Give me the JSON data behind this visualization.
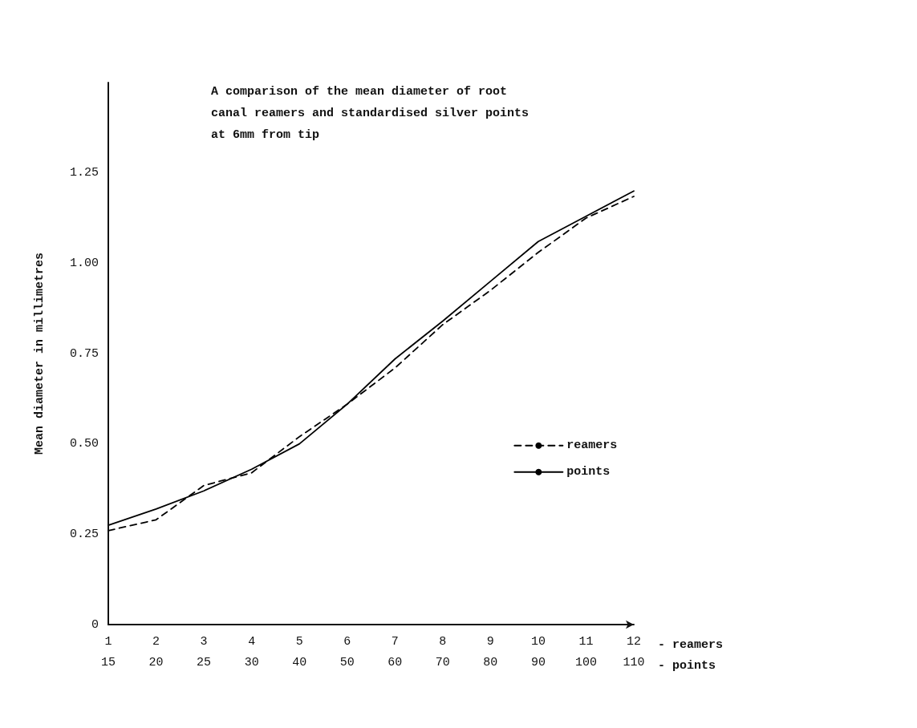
{
  "chart_data": {
    "type": "line",
    "title": "A comparison of the mean diameter of root\ncanal reamers and standardised silver points\nat 6mm from tip",
    "ylabel": "Mean diameter in millimetres",
    "xlabel": "- reamers\n- points",
    "categories": [
      "1\n15",
      "2\n20",
      "3\n25",
      "4\n30",
      "5\n40",
      "6\n50",
      "7\n60",
      "8\n70",
      "9\n80",
      "10\n90",
      "11\n100",
      "12\n110"
    ],
    "ylim": [
      0,
      1.5
    ],
    "yticks": [
      0,
      {
        "value": 0.25,
        "label": "0.25"
      },
      {
        "value": 0.5,
        "label": "0.50"
      },
      {
        "value": 0.75,
        "label": "0.75"
      },
      {
        "value": 1,
        "label": "1.00"
      },
      {
        "value": 1.25,
        "label": "1.25"
      }
    ],
    "series": [
      {
        "name": "reamers",
        "color": "#000000",
        "line_style": "dashed",
        "values": [
          0.26,
          0.29,
          0.385,
          0.42,
          0.52,
          0.61,
          0.71,
          0.83,
          0.925,
          1.03,
          1.125,
          1.185
        ]
      },
      {
        "name": "points",
        "color": "#000000",
        "line_style": "solid",
        "values": [
          0.275,
          0.32,
          0.37,
          0.43,
          0.5,
          0.61,
          0.735,
          0.84,
          0.95,
          1.06,
          1.13,
          1.2
        ]
      }
    ],
    "legend": "right",
    "grid": false,
    "marker": "none"
  }
}
